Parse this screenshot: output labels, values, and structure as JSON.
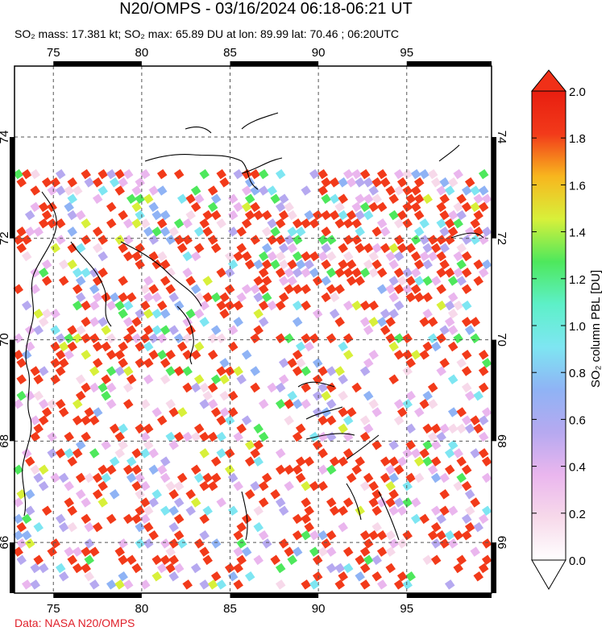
{
  "title": "N20/OMPS - 03/16/2024 06:18-06:21 UT",
  "subtitle": "SO₂ mass: 17.381 kt; SO₂ max: 65.89 DU at lon: 89.99 lat: 70.46 ; 06:20UTC",
  "credit": "Data: NASA N20/OMPS",
  "map": {
    "lon_range": [
      72.8,
      99.8
    ],
    "lat_range": [
      65.0,
      75.4
    ],
    "lon_ticks": [
      "75",
      "80",
      "85",
      "90",
      "95"
    ],
    "lon_tick_values": [
      75,
      80,
      85,
      90,
      95
    ],
    "lat_ticks": [
      "74",
      "72",
      "70",
      "68",
      "66"
    ],
    "lat_tick_values": [
      74,
      72,
      70,
      68,
      66
    ],
    "grid": "dashed"
  },
  "colorbar": {
    "label": "SO₂ column PBL [DU]",
    "tick_labels": [
      "0.0",
      "0.2",
      "0.4",
      "0.6",
      "0.8",
      "1.0",
      "1.2",
      "1.4",
      "1.6",
      "1.8",
      "2.0"
    ],
    "min": 0.0,
    "max": 2.0,
    "colors": [
      "#ffffff",
      "#f7d9ea",
      "#eab6ee",
      "#b6a9f0",
      "#8fb3f5",
      "#7ee6f2",
      "#5df0c8",
      "#4ee85c",
      "#d8f03a",
      "#f8b61e",
      "#f23a1a",
      "#e81e10"
    ]
  }
}
